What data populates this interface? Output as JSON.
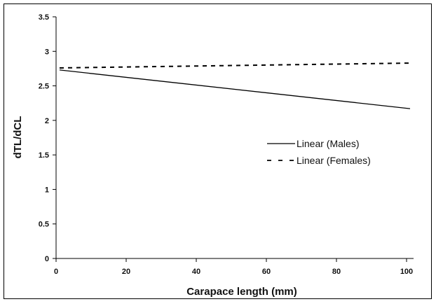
{
  "chart_data": {
    "type": "line",
    "title": "",
    "xlabel": "Carapace length (mm)",
    "ylabel": "dTL/dCL",
    "xlim": [
      0,
      100
    ],
    "ylim": [
      0,
      3.5
    ],
    "x_ticks": [
      "0",
      "20",
      "40",
      "60",
      "80",
      "100"
    ],
    "y_ticks": [
      "0",
      "0.5",
      "1",
      "1.5",
      "2",
      "2.5",
      "3",
      "3.5"
    ],
    "grid": false,
    "legend_position": "center-right",
    "series": [
      {
        "name": "Linear (Males)",
        "style": "solid",
        "color": "#000000",
        "x": [
          1,
          101
        ],
        "y": [
          2.73,
          2.17
        ]
      },
      {
        "name": "Linear (Females)",
        "style": "dashed",
        "color": "#000000",
        "x": [
          1,
          101
        ],
        "y": [
          2.76,
          2.83
        ]
      }
    ]
  }
}
